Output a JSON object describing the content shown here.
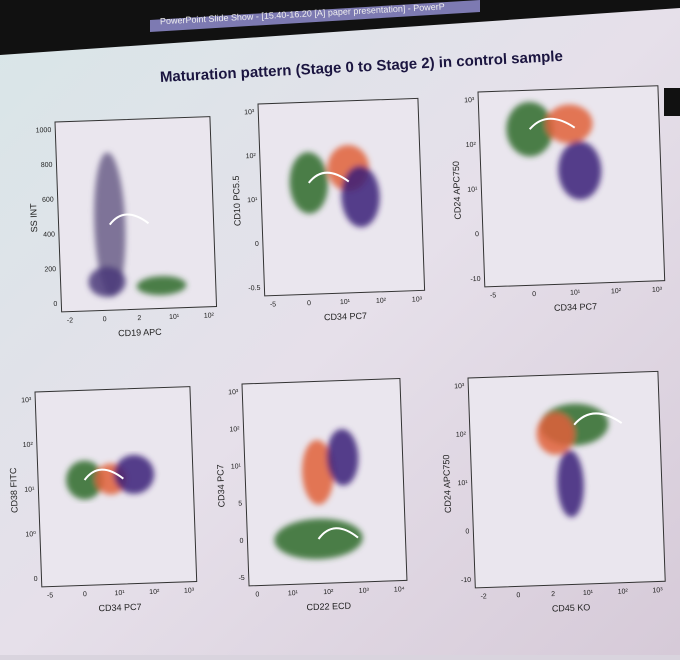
{
  "header": {
    "window_title": "PowerPoint Slide Show - [15.40-16.20 [A] paper presentation] - PowerP"
  },
  "slide": {
    "title": "Maturation pattern (Stage 0 to Stage 2) in control sample"
  },
  "plots": [
    {
      "y_label": "SS INT",
      "y_ticks": [
        "1000",
        "800",
        "600",
        "400",
        "200",
        "0"
      ],
      "x_label": "CD19 APC",
      "x_ticks": [
        "-2",
        "0",
        "2",
        "10¹",
        "10²"
      ]
    },
    {
      "y_label": "CD10 PC5.5",
      "y_ticks": [
        "10³",
        "10²",
        "10¹",
        "0",
        "-0.5"
      ],
      "x_label": "CD34 PC7",
      "x_ticks": [
        "-5",
        "0",
        "10¹",
        "10²",
        "10³"
      ]
    },
    {
      "y_label": "CD24 APC750",
      "y_ticks": [
        "10³",
        "10²",
        "10¹",
        "0",
        "-10"
      ],
      "x_label": "CD34 PC7",
      "x_ticks": [
        "-5",
        "0",
        "10¹",
        "10²",
        "10³"
      ]
    },
    {
      "y_label": "CD38 FITC",
      "y_ticks": [
        "10³",
        "10²",
        "10¹",
        "10⁰",
        "0"
      ],
      "x_label": "CD34 PC7",
      "x_ticks": [
        "-5",
        "0",
        "10¹",
        "10²",
        "10³"
      ]
    },
    {
      "y_label": "CD34 PC7",
      "y_ticks": [
        "10³",
        "10²",
        "10¹",
        "5",
        "0",
        "-5"
      ],
      "x_label": "CD22 ECD",
      "x_ticks": [
        "0",
        "10¹",
        "10²",
        "10³",
        "10⁴"
      ]
    },
    {
      "y_label": "CD24 APC750",
      "y_ticks": [
        "10³",
        "10²",
        "10¹",
        "0",
        "-10"
      ],
      "x_label": "CD45 KO",
      "x_ticks": [
        "-2",
        "0",
        "2",
        "10¹",
        "10²",
        "10³"
      ]
    }
  ]
}
